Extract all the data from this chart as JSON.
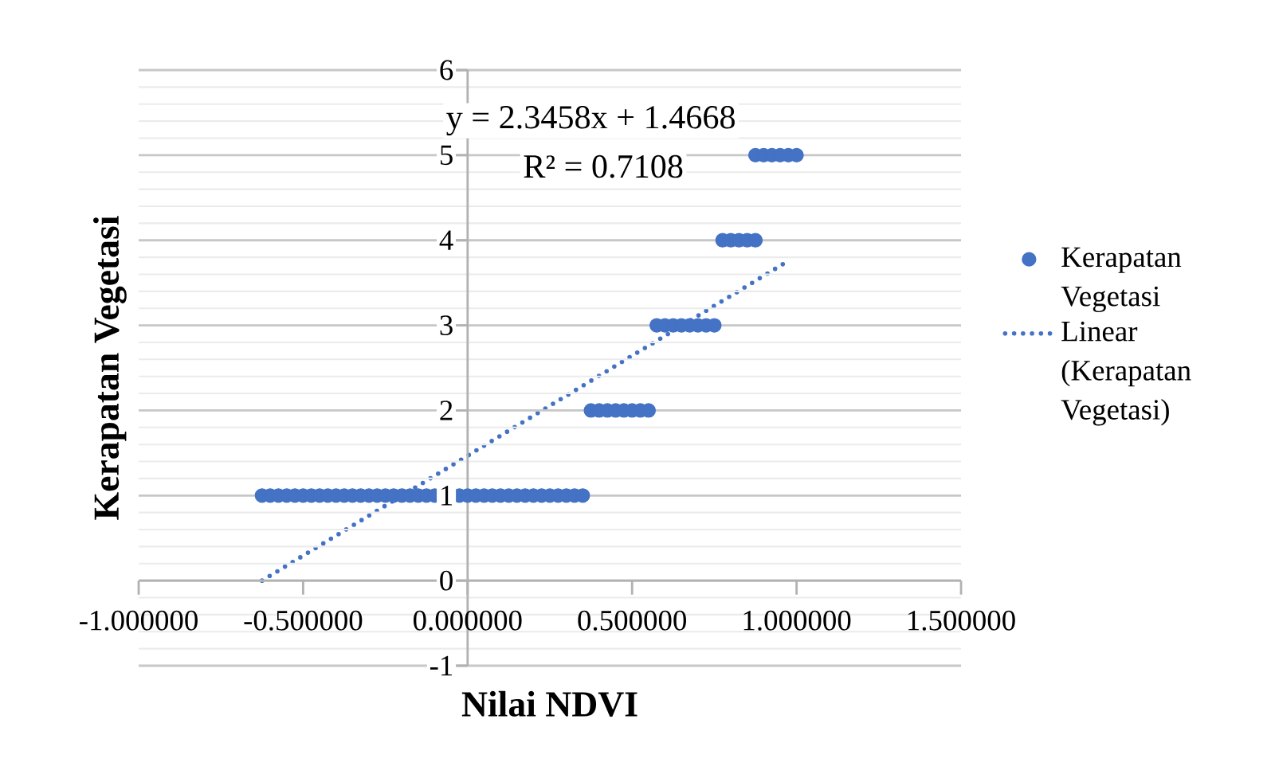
{
  "chart_data": {
    "type": "scatter",
    "xlabel": "Nilai NDVI",
    "ylabel": "Kerapatan Vegetasi",
    "annotations": [
      "y = 2.3458x + 1.4668",
      "R² = 0.7108"
    ],
    "xlim": [
      -1,
      1.5
    ],
    "ylim": [
      -1,
      6
    ],
    "xticks": [
      {
        "value": -1,
        "label": "-1.000000"
      },
      {
        "value": -0.5,
        "label": "-0.500000"
      },
      {
        "value": 0,
        "label": "0.000000"
      },
      {
        "value": 0.5,
        "label": "0.500000"
      },
      {
        "value": 1,
        "label": "1.000000"
      },
      {
        "value": 1.5,
        "label": "1.500000"
      }
    ],
    "yticks": [
      -1,
      0,
      1,
      2,
      3,
      4,
      5,
      6
    ],
    "grid": "y",
    "legend": "right",
    "series": [
      {
        "name": "Kerapatan Vegetasi",
        "type": "scatter",
        "marker": "circle",
        "color": "#4472c4",
        "x": [
          -0.625,
          -0.6,
          -0.575,
          -0.55,
          -0.525,
          -0.5,
          -0.475,
          -0.45,
          -0.425,
          -0.4,
          -0.375,
          -0.35,
          -0.325,
          -0.3,
          -0.275,
          -0.25,
          -0.225,
          -0.2,
          -0.175,
          -0.15,
          -0.125,
          -0.1,
          -0.025,
          0,
          0.025,
          0.05,
          0.075,
          0.1,
          0.125,
          0.15,
          0.175,
          0.2,
          0.225,
          0.25,
          0.275,
          0.3,
          0.325,
          0.35,
          0.375,
          0.4,
          0.425,
          0.45,
          0.475,
          0.5,
          0.525,
          0.55,
          0.575,
          0.6,
          0.625,
          0.65,
          0.675,
          0.7,
          0.725,
          0.75,
          0.775,
          0.8,
          0.825,
          0.85,
          0.875,
          0.875,
          0.9,
          0.925,
          0.95,
          0.975,
          1.0
        ],
        "values": [
          1,
          1,
          1,
          1,
          1,
          1,
          1,
          1,
          1,
          1,
          1,
          1,
          1,
          1,
          1,
          1,
          1,
          1,
          1,
          1,
          1,
          1,
          1,
          1,
          1,
          1,
          1,
          1,
          1,
          1,
          1,
          1,
          1,
          1,
          1,
          1,
          1,
          1,
          2,
          2,
          2,
          2,
          2,
          2,
          2,
          2,
          3,
          3,
          3,
          3,
          3,
          3,
          3,
          3,
          4,
          4,
          4,
          4,
          4,
          5,
          5,
          5,
          5,
          5,
          5
        ]
      },
      {
        "name": "Linear (Kerapatan Vegetasi)",
        "type": "line",
        "marker": "none",
        "line_style": "dotted",
        "color": "#4472c4",
        "x": [
          -0.625,
          0.98
        ],
        "values": [
          0,
          3.77
        ]
      }
    ]
  }
}
